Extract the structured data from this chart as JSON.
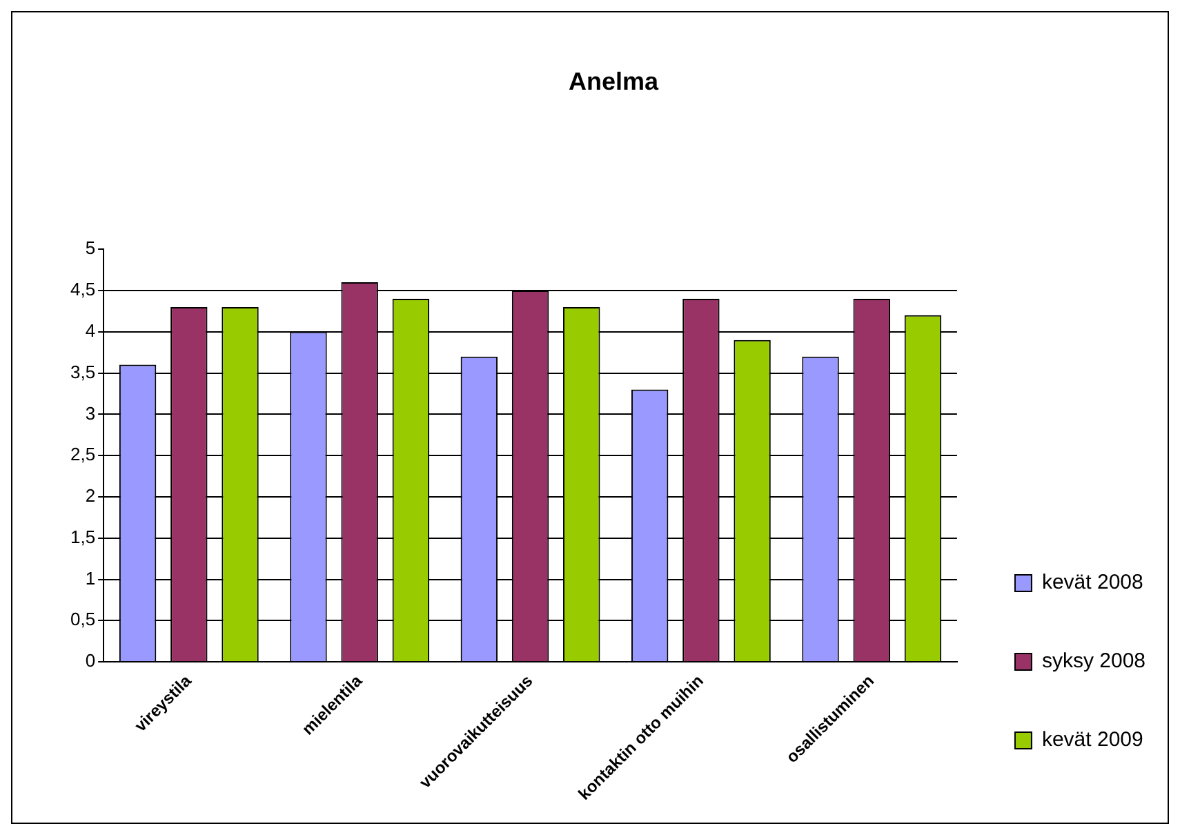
{
  "chart_data": {
    "type": "bar",
    "title": "Anelma",
    "categories": [
      "vireystila",
      "mielentila",
      "vuorovaikutteisuus",
      "kontaktin otto muihin",
      "osallistuminen"
    ],
    "series": [
      {
        "name": "kevät 2008",
        "color": "#9999ff",
        "values": [
          3.6,
          4.0,
          3.7,
          3.3,
          3.7
        ]
      },
      {
        "name": "syksy 2008",
        "color": "#993366",
        "values": [
          4.3,
          4.6,
          4.5,
          4.4,
          4.4
        ]
      },
      {
        "name": "kevät 2009",
        "color": "#99cc00",
        "values": [
          4.3,
          4.4,
          4.3,
          3.9,
          4.2
        ]
      }
    ],
    "ylim": [
      0,
      5
    ],
    "yticks": [
      0,
      {
        "value": 0.5,
        "label": "0,5"
      },
      1,
      {
        "value": 1.5,
        "label": "1,5"
      },
      2,
      {
        "value": 2.5,
        "label": "2,5"
      },
      3,
      {
        "value": 3.5,
        "label": "3,5"
      },
      4,
      {
        "value": 4.5,
        "label": "4,5"
      },
      5
    ],
    "grid": "y",
    "legend": "right"
  }
}
